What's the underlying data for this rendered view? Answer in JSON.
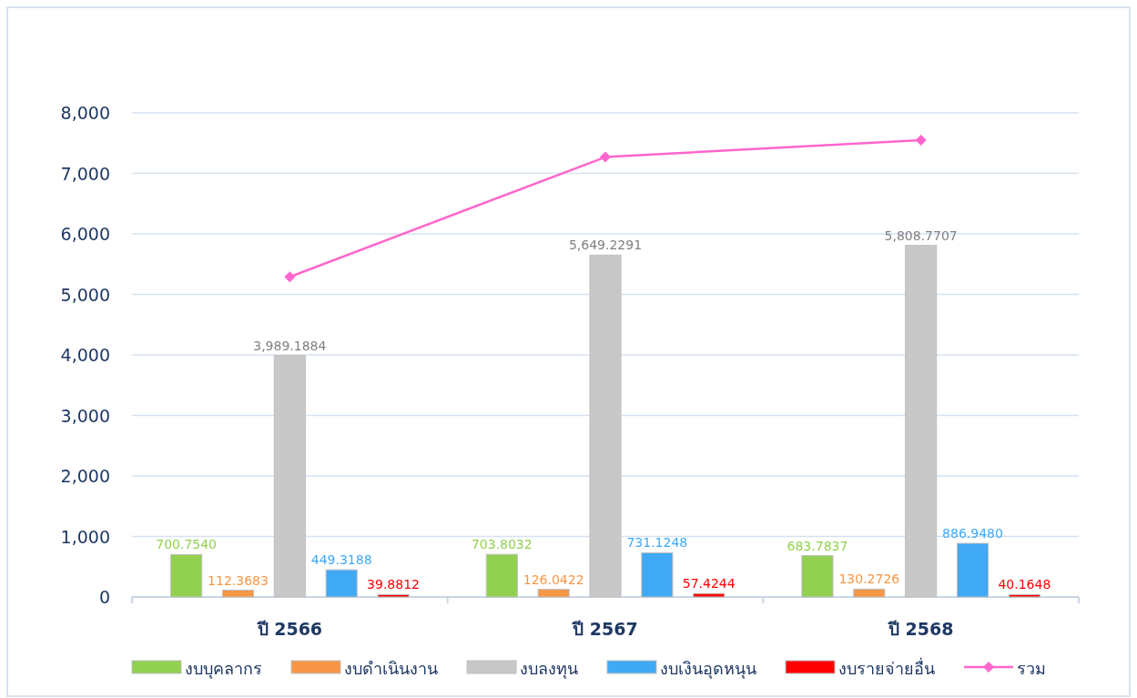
{
  "chart_data": {
    "type": "bar",
    "categories": [
      "ปี 2566",
      "ปี 2567",
      "ปี 2568"
    ],
    "series": [
      {
        "name": "งบบุคลากร",
        "color": "#92d050",
        "values": [
          700.754,
          703.8032,
          683.7837
        ],
        "value_labels": [
          "700.7540",
          "703.8032",
          "683.7837"
        ]
      },
      {
        "name": "งบดำเนินงาน",
        "color": "#f79646",
        "values": [
          112.3683,
          126.0422,
          130.2726
        ],
        "value_labels": [
          "112.3683",
          "126.0422",
          "130.2726"
        ]
      },
      {
        "name": "งบลงทุน",
        "color": "#c8c8c8",
        "values": [
          3989.1884,
          5649.2291,
          5808.7707
        ],
        "value_labels": [
          "3,989.1884",
          "5,649.2291",
          "5,808.7707"
        ]
      },
      {
        "name": "งบเงินอุดหนุน",
        "color": "#3fa9f5",
        "values": [
          449.3188,
          731.1248,
          886.948
        ],
        "value_labels": [
          "449.3188",
          "731.1248",
          "886.9480"
        ]
      },
      {
        "name": "งบรายจ่ายอื่น",
        "color": "#ff0000",
        "values": [
          39.8812,
          57.4244,
          40.1648
        ],
        "value_labels": [
          "39.8812",
          "57.4244",
          "40.1648"
        ]
      },
      {
        "name": "รวม",
        "type": "line",
        "color": "#ff66cc",
        "marker": "diamond",
        "values": [
          5290,
          7270,
          7550
        ]
      }
    ],
    "ylim": [
      0,
      8000
    ],
    "yticks": [
      {
        "value": 0,
        "label": "0"
      },
      {
        "value": 1000,
        "label": "1,000"
      },
      {
        "value": 2000,
        "label": "2,000"
      },
      {
        "value": 3000,
        "label": "3,000"
      },
      {
        "value": 4000,
        "label": "4,000"
      },
      {
        "value": 5000,
        "label": "5,000"
      },
      {
        "value": 6000,
        "label": "6,000"
      },
      {
        "value": 7000,
        "label": "7,000"
      },
      {
        "value": 8000,
        "label": "8,000"
      }
    ],
    "grid": "y",
    "legend": "bottom"
  }
}
